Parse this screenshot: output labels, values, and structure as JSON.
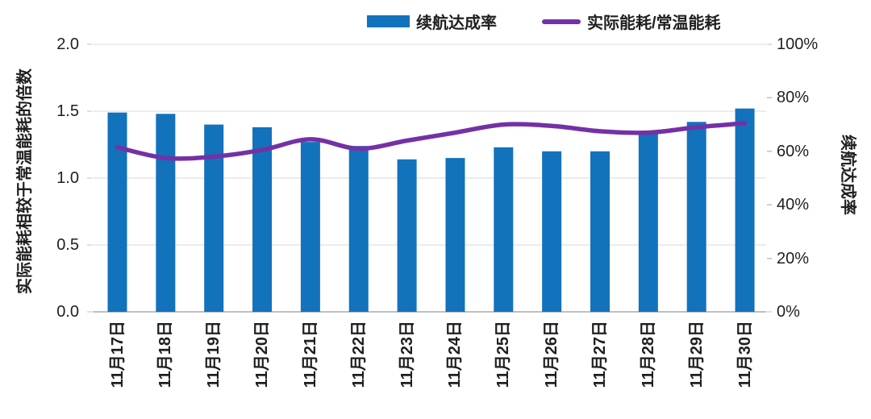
{
  "legend": {
    "items": [
      {
        "label": "续航达成率",
        "swatch": "bar-swatch-icon"
      },
      {
        "label": "实际能耗/常温能耗",
        "swatch": "line-swatch-icon"
      }
    ]
  },
  "colors": {
    "bar": "#1272BC",
    "line": "#7431A5",
    "grid": "#DADADA",
    "baseline": "#BFBFBF",
    "tick": "#BFBFBF",
    "text": "#1F1F1F"
  },
  "chart_data": {
    "type": "combo",
    "categories": [
      "11月17日",
      "11月18日",
      "11月19日",
      "11月20日",
      "11月21日",
      "11月22日",
      "11月23日",
      "11月24日",
      "11月25日",
      "11月26日",
      "11月27日",
      "11月28日",
      "11月29日",
      "11月30日"
    ],
    "series": [
      {
        "name": "续航达成率",
        "type": "bar",
        "axis": "right",
        "unit": "%",
        "values": [
          74.5,
          74,
          70,
          69,
          63.5,
          62,
          57,
          57.5,
          61.5,
          60,
          60,
          66.5,
          71,
          76
        ]
      },
      {
        "name": "实际能耗/常温能耗",
        "type": "line",
        "axis": "left",
        "values": [
          1.23,
          1.15,
          1.16,
          1.21,
          1.29,
          1.22,
          1.28,
          1.34,
          1.4,
          1.39,
          1.35,
          1.34,
          1.38,
          1.41
        ]
      }
    ],
    "left_axis": {
      "label": "实际能耗相较于常温能耗的倍数",
      "min": 0.0,
      "max": 2.0,
      "ticks": [
        "0.0",
        "0.5",
        "1.0",
        "1.5",
        "2.0"
      ]
    },
    "right_axis": {
      "label": "续航达成率",
      "min": "0%",
      "max": "100%",
      "ticks": [
        "0%",
        "20%",
        "40%",
        "60%",
        "80%",
        "100%"
      ]
    },
    "grid": true,
    "legend_position": "top"
  }
}
